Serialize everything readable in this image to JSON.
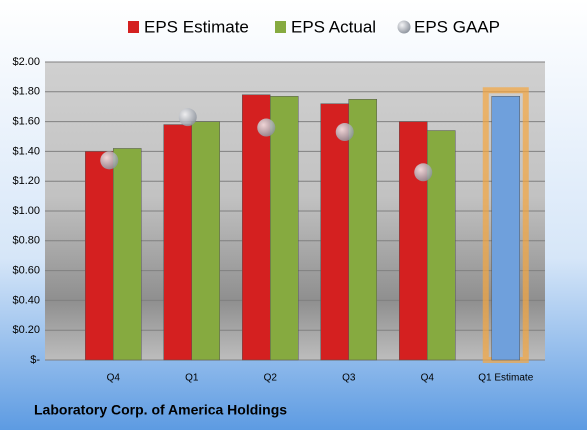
{
  "chart_data": {
    "type": "bar",
    "title": "Laboratory Corp. of America Holdings",
    "categories": [
      "Q4",
      "Q1",
      "Q2",
      "Q3",
      "Q4",
      "Q1 Estimate"
    ],
    "series": [
      {
        "name": "EPS Estimate",
        "color": "#d42020",
        "values": [
          1.4,
          1.58,
          1.78,
          1.72,
          1.6,
          1.77
        ],
        "highlight_color": "#6fa0dc"
      },
      {
        "name": "EPS Actual",
        "color": "#86aa40",
        "values": [
          1.42,
          1.6,
          1.77,
          1.75,
          1.54,
          null
        ]
      },
      {
        "name": "EPS GAAP",
        "color": "#a8adb5",
        "values": [
          1.34,
          1.63,
          1.56,
          1.53,
          1.26,
          null
        ]
      }
    ],
    "ylim": [
      0,
      2
    ],
    "yticks": [
      {
        "value": 0,
        "label": "$-"
      },
      {
        "value": 0.2,
        "label": "$0.20"
      },
      {
        "value": 0.4,
        "label": "$0.40"
      },
      {
        "value": 0.6,
        "label": "$0.60"
      },
      {
        "value": 0.8,
        "label": "$0.80"
      },
      {
        "value": 1.0,
        "label": "$1.00"
      },
      {
        "value": 1.2,
        "label": "$1.20"
      },
      {
        "value": 1.4,
        "label": "$1.40"
      },
      {
        "value": 1.6,
        "label": "$1.60"
      },
      {
        "value": 1.8,
        "label": "$1.80"
      },
      {
        "value": 2.0,
        "label": "$2.00"
      }
    ],
    "grid": true
  }
}
